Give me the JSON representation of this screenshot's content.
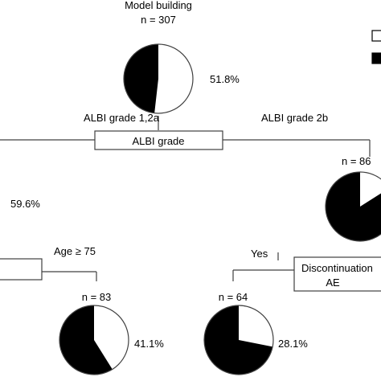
{
  "root": {
    "title": "Model building",
    "n": "n = 307",
    "percent": "51.8%",
    "white_fraction": 0.518
  },
  "split1": {
    "label": "ALBI grade",
    "left_branch": "ALBI grade 1,2a",
    "right_branch": "ALBI grade 2b"
  },
  "left_node": {
    "percent": "59.6%"
  },
  "right_node": {
    "n": "n = 86"
  },
  "split_left": {
    "label": "Age ≥ 75"
  },
  "split_right": {
    "label_line1": "Discontinuation",
    "label_line2": "AE",
    "yes_label": "Yes"
  },
  "leaf_left": {
    "n": "n = 83",
    "percent": "41.1%",
    "white_fraction": 0.411
  },
  "leaf_right": {
    "n": "n = 64",
    "percent": "28.1%",
    "white_fraction": 0.281
  },
  "colors": {
    "line": "#404040",
    "fill_dark": "#000000",
    "fill_light": "#ffffff"
  }
}
